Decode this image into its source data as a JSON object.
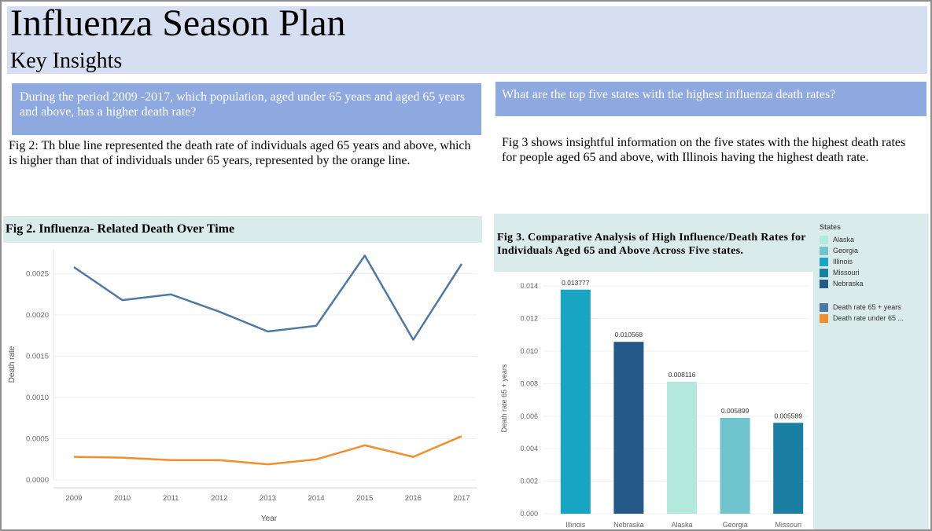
{
  "header": {
    "title": "Influenza Season Plan",
    "subtitle": "Key Insights"
  },
  "left": {
    "question": "During the period 2009 -2017, which population, aged under 65 years and aged 65 years and above, has a higher death rate?",
    "description": "Fig 2: Th blue line represented the death rate of individuals aged 65 years and above, which is higher than that of individuals under 65 years, represented by the orange line."
  },
  "right": {
    "question": "What are the top five states with the highest influenza death rates?",
    "description": "Fig 3 shows insightful information on the five states with the highest death rates for people aged 65 and above, with Illinois having the highest death rate."
  },
  "legend": {
    "states_title": "States",
    "states": [
      {
        "label": "Alaska",
        "color": "#b3e8dc"
      },
      {
        "label": "Georgia",
        "color": "#6fc4ce"
      },
      {
        "label": "Illinois",
        "color": "#17a5c3"
      },
      {
        "label": "Missouri",
        "color": "#1a7fa3"
      },
      {
        "label": "Nebraska",
        "color": "#245989"
      }
    ],
    "measures": [
      {
        "label": "Death rate 65 + years",
        "color": "#4e79a7"
      },
      {
        "label": "Death rate under 65 ...",
        "color": "#f28e2b"
      }
    ]
  },
  "chart_data": [
    {
      "type": "line",
      "title": "Fig 2. Influenza- Related Death Over Time",
      "xlabel": "Year",
      "ylabel": "Death rate",
      "x": [
        2009,
        2010,
        2011,
        2012,
        2013,
        2014,
        2015,
        2016,
        2017
      ],
      "ylim": [
        0,
        0.0028
      ],
      "yticks": [
        "0.0000",
        "0.0005",
        "0.0010",
        "0.0015",
        "0.0020",
        "0.0025"
      ],
      "grid": true,
      "series": [
        {
          "color": "#4e79a7",
          "values": [
            0.00258,
            0.00218,
            0.00225,
            0.00204,
            0.0018,
            0.00187,
            0.00272,
            0.0017,
            0.00262
          ]
        },
        {
          "color": "#f28e2b",
          "values": [
            0.00028,
            0.00027,
            0.00024,
            0.00024,
            0.00019,
            0.00025,
            0.00042,
            0.00028,
            0.00053
          ]
        }
      ]
    },
    {
      "type": "bar",
      "title": "Fig 3. Comparative Analysis of High Influence/Death Rates for Individuals Aged 65 and Above Across Five states.",
      "ylabel": "Death rate 65 + years",
      "ylim": [
        0,
        0.0142
      ],
      "yticks": [
        "0.000",
        "0.002",
        "0.004",
        "0.006",
        "0.008",
        "0.010",
        "0.012",
        "0.014"
      ],
      "categories": [
        "Illinois",
        "Nebraska",
        "Alaska",
        "Georgia",
        "Missouri"
      ],
      "values": [
        0.013777,
        0.010568,
        0.008116,
        0.005899,
        0.005589
      ],
      "value_labels": [
        "0.013777",
        "0.010568",
        "0.008116",
        "0.005899",
        "0.005589"
      ],
      "colors": [
        "#17a5c3",
        "#245989",
        "#b3e8dc",
        "#6fc4ce",
        "#1a7fa3"
      ],
      "grid": true
    }
  ]
}
